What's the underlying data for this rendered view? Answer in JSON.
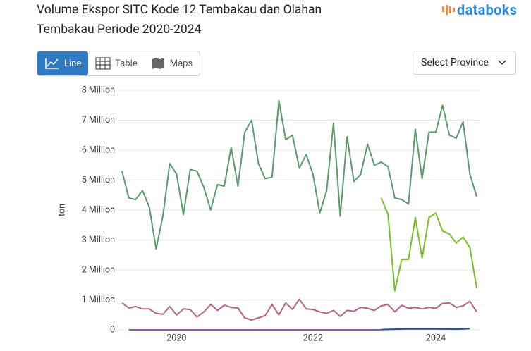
{
  "ui": {
    "logo": "databoks",
    "tabs": [
      "Line",
      "Table",
      "Maps"
    ],
    "select": "Select Province"
  },
  "chart_data": {
    "type": "line",
    "title": "Volume Ekspor SITC Kode 12 Tembakau dan Olahan Tembakau Periode 2020-2024",
    "y_label": "ton",
    "categories": [
      null,
      null,
      null,
      null,
      null,
      null,
      null,
      null,
      "2020",
      null,
      null,
      null,
      null,
      null,
      null,
      null,
      null,
      null,
      null,
      null,
      null,
      null,
      null,
      null,
      null,
      null,
      null,
      null,
      "2022",
      null,
      null,
      null,
      null,
      null,
      null,
      null,
      null,
      null,
      null,
      null,
      null,
      null,
      null,
      null,
      null,
      null,
      "2024",
      null,
      null,
      null,
      null,
      null,
      null
    ],
    "ylim": [
      0,
      8000000
    ],
    "yticks": [
      0,
      {
        "value": 1000000,
        "label": "1 Million"
      },
      {
        "value": 2000000,
        "label": "2 Million"
      },
      {
        "value": 3000000,
        "label": "3 Million"
      },
      {
        "value": 4000000,
        "label": "4 Million"
      },
      {
        "value": 5000000,
        "label": "5 Million"
      },
      {
        "value": 6000000,
        "label": "6 Million"
      },
      {
        "value": 7000000,
        "label": "7 Million"
      },
      {
        "value": 8000000,
        "label": "8 Million"
      }
    ],
    "grid": true,
    "series": [
      {
        "color": "#5a9a6c",
        "values": [
          5300000,
          4400000,
          4350000,
          4650000,
          4100000,
          2700000,
          3800000,
          5550000,
          5200000,
          3850000,
          5350000,
          5300000,
          4750000,
          4000000,
          4850000,
          4800000,
          6100000,
          4800000,
          6600000,
          7000000,
          5550000,
          5050000,
          5100000,
          7650000,
          6350000,
          6500000,
          5400000,
          5850000,
          5200000,
          3900000,
          4650000,
          6900000,
          3800000,
          6450000,
          4950000,
          5200000,
          6200000,
          5500000,
          5600000,
          5450000,
          4400000,
          4350000,
          4200000,
          6700000,
          5050000,
          6600000,
          6600000,
          7500000,
          6500000,
          6400000,
          6950000,
          5200000,
          4450000
        ]
      },
      {
        "color": "#7cbb2a",
        "values": [
          null,
          null,
          null,
          null,
          null,
          null,
          null,
          null,
          null,
          null,
          null,
          null,
          null,
          null,
          null,
          null,
          null,
          null,
          null,
          null,
          null,
          null,
          null,
          null,
          null,
          null,
          null,
          null,
          null,
          null,
          null,
          null,
          null,
          null,
          null,
          null,
          null,
          null,
          4400000,
          3850000,
          1300000,
          2350000,
          2350000,
          3750000,
          2400000,
          3750000,
          3900000,
          3300000,
          3200000,
          2900000,
          3100000,
          2750000,
          1400000
        ]
      },
      {
        "color": "#b3657f",
        "values": [
          900000,
          730000,
          780000,
          700000,
          700000,
          550000,
          520000,
          780000,
          500000,
          700000,
          680000,
          430000,
          600000,
          850000,
          650000,
          820000,
          750000,
          730000,
          400000,
          330000,
          400000,
          480000,
          850000,
          500000,
          900000,
          680000,
          1020000,
          700000,
          680000,
          600000,
          550000,
          650000,
          450000,
          650000,
          620000,
          750000,
          720000,
          650000,
          800000,
          850000,
          600000,
          820000,
          720000,
          750000,
          700000,
          750000,
          720000,
          880000,
          900000,
          750000,
          800000,
          950000,
          600000
        ]
      },
      {
        "color": "#8d5b97",
        "values": [
          null,
          0,
          0,
          0,
          0,
          0,
          0,
          0,
          0,
          0,
          0,
          0,
          0,
          0,
          0,
          0,
          0,
          0,
          0,
          0,
          0,
          0,
          0,
          0,
          0,
          0,
          0,
          0,
          0,
          0,
          0,
          0,
          0,
          0,
          0,
          0,
          0,
          0,
          0,
          null,
          null,
          null,
          null,
          null,
          null,
          null,
          null,
          null,
          null,
          null,
          null,
          null,
          null
        ]
      },
      {
        "color": "#1f4f9e",
        "values": [
          null,
          null,
          null,
          null,
          null,
          null,
          null,
          null,
          null,
          null,
          null,
          null,
          null,
          null,
          null,
          null,
          null,
          null,
          null,
          null,
          null,
          null,
          null,
          null,
          null,
          null,
          null,
          null,
          null,
          null,
          null,
          null,
          null,
          null,
          null,
          null,
          null,
          null,
          10000,
          15000,
          20000,
          25000,
          30000,
          30000,
          30000,
          28000,
          28000,
          25000,
          25000,
          20000,
          30000,
          40000,
          null
        ]
      }
    ]
  }
}
